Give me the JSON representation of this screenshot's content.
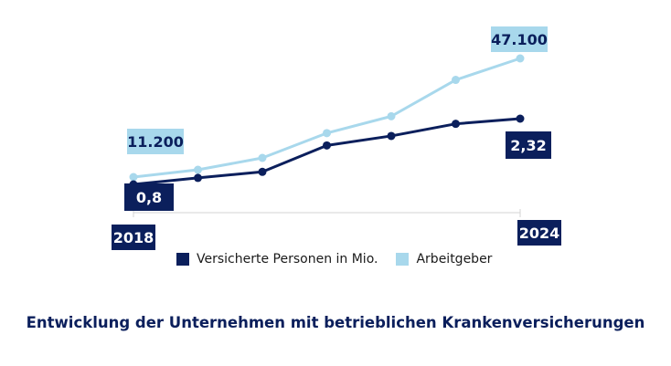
{
  "colors": {
    "dark": "#0b1f5c",
    "light": "#a8d8ec",
    "axis": "#d3d3d3"
  },
  "legend": {
    "items": [
      {
        "label": "Versicherte Personen in Mio.",
        "color": "#0b1f5c"
      },
      {
        "label": "Arbeitgeber",
        "color": "#a8d8ec"
      }
    ]
  },
  "caption": "Entwicklung der Unternehmen mit betrieblichen Krankenversicherungen",
  "chart_data": {
    "type": "line",
    "title": "Entwicklung der Unternehmen mit betrieblichen Krankenversicherungen",
    "xlabel": "",
    "ylabel": "",
    "grid": false,
    "legend_position": "bottom",
    "x": [
      "2018",
      "2019",
      "2020",
      "2021",
      "2022",
      "2023",
      "2024"
    ],
    "x_tick_labels": [
      "2018",
      "2024"
    ],
    "series": [
      {
        "name": "Versicherte Personen in Mio.",
        "color": "#0b1f5c",
        "values": [
          0.8,
          0.95,
          1.09,
          1.7,
          1.92,
          2.2,
          2.32
        ]
      },
      {
        "name": "Arbeitgeber",
        "color": "#a8d8ec",
        "values": [
          11200,
          13400,
          17000,
          24500,
          29600,
          40600,
          47100
        ]
      }
    ],
    "data_labels": [
      {
        "series": 0,
        "x": "2018",
        "text": "0,8"
      },
      {
        "series": 0,
        "x": "2024",
        "text": "2,32"
      },
      {
        "series": 1,
        "x": "2018",
        "text": "11.200"
      },
      {
        "series": 1,
        "x": "2024",
        "text": "47.100"
      }
    ]
  }
}
